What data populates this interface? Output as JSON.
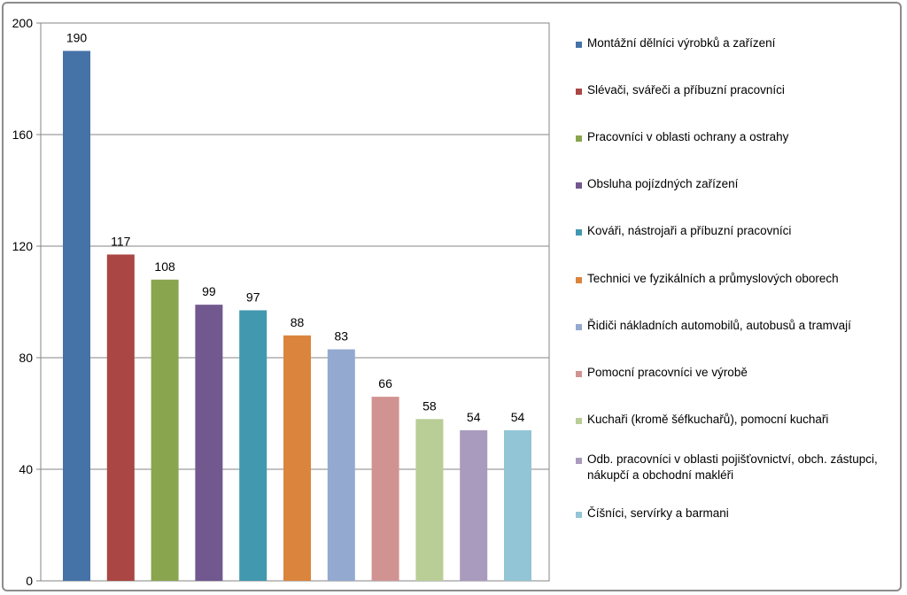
{
  "chart_data": {
    "type": "bar",
    "title": "",
    "xlabel": "",
    "ylabel": "",
    "ylim": [
      0,
      200
    ],
    "yticks": [
      0,
      40,
      80,
      120,
      160,
      200
    ],
    "grid": true,
    "legend_position": "right",
    "series": [
      {
        "name": "Montážní dělníci výrobků a zařízení",
        "value": 190,
        "color": "#4572A7"
      },
      {
        "name": "Slévači, svářeči a příbuzní pracovníci",
        "value": 117,
        "color": "#AA4643"
      },
      {
        "name": "Pracovníci v oblasti ochrany a ostrahy",
        "value": 108,
        "color": "#89A54E"
      },
      {
        "name": "Obsluha pojízdných zařízení",
        "value": 99,
        "color": "#71588F"
      },
      {
        "name": "Kováři, nástrojaři a příbuzní pracovníci",
        "value": 97,
        "color": "#4198AF"
      },
      {
        "name": "Technici ve fyzikálních a průmyslových oborech",
        "value": 88,
        "color": "#DB843D"
      },
      {
        "name": "Řidiči nákladních automobilů, autobusů a tramvají",
        "value": 83,
        "color": "#93A9CF"
      },
      {
        "name": "Pomocní pracovníci ve výrobě",
        "value": 66,
        "color": "#D19392"
      },
      {
        "name": "Kuchaři (kromě šéfkuchařů), pomocní kuchaři",
        "value": 58,
        "color": "#B9CD96"
      },
      {
        "name": "Odb. pracovníci v oblasti pojišťovnictví, obch. zástupci, nákupčí a obchodní makléři",
        "value": 54,
        "color": "#A99BBD"
      },
      {
        "name": "Číšníci, servírky a barmani",
        "value": 54,
        "color": "#92C5D6"
      }
    ]
  }
}
